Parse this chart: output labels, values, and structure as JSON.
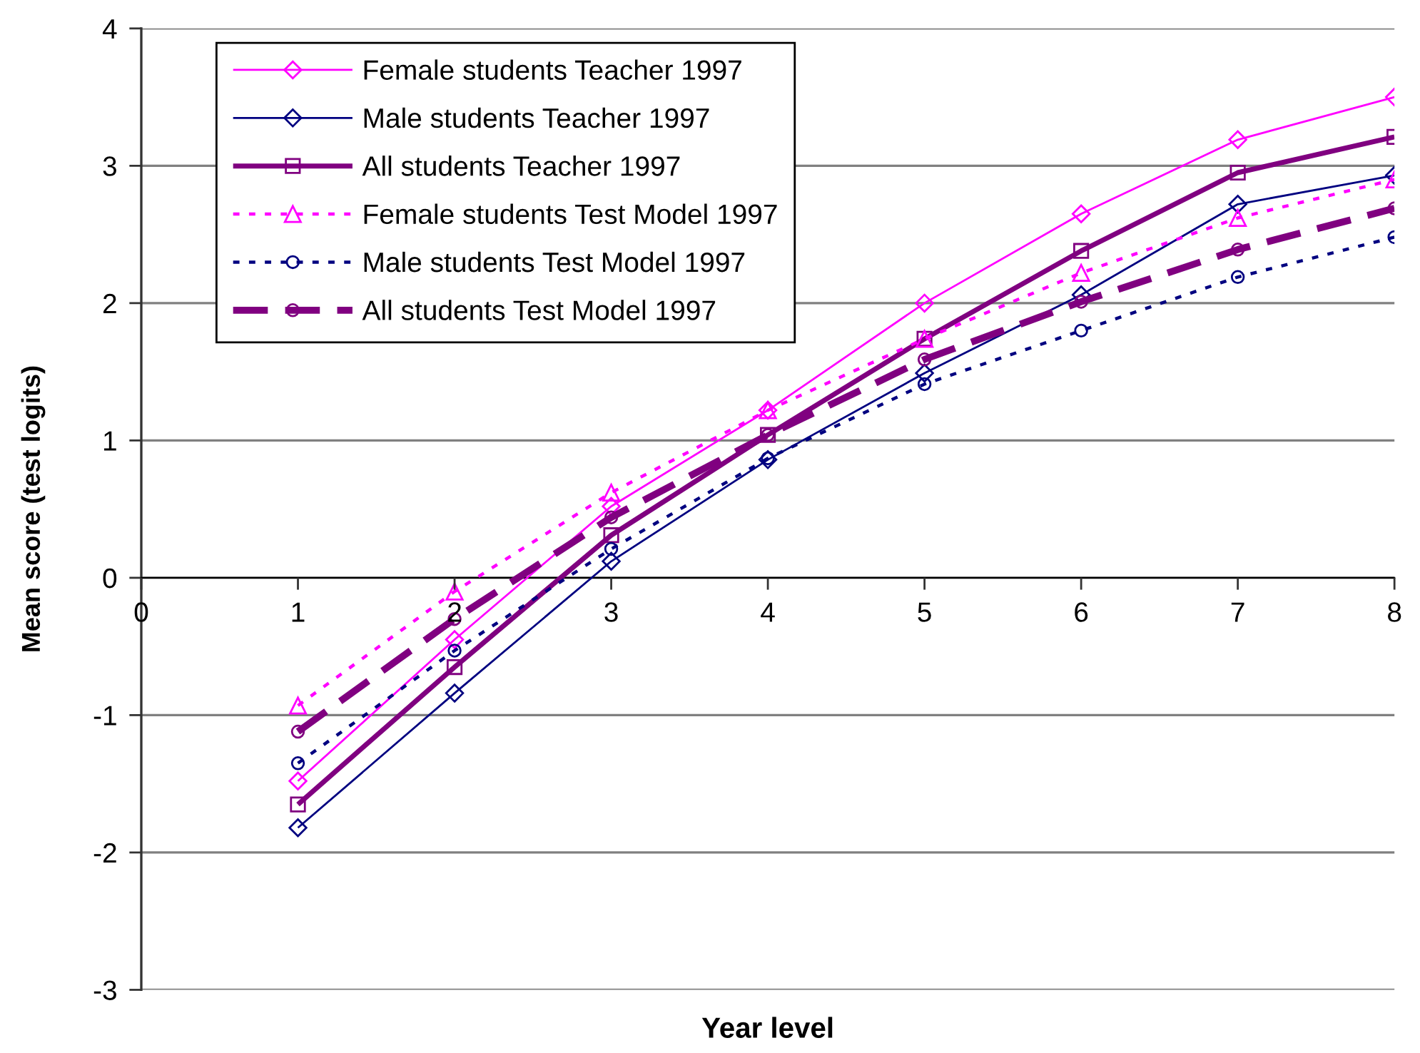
{
  "chart_data": {
    "type": "line",
    "xlabel": "Year level",
    "ylabel": "Mean score (test logits)",
    "x": [
      1,
      2,
      3,
      4,
      5,
      6,
      7,
      8
    ],
    "xlim": [
      0,
      8
    ],
    "xticks": [
      0,
      1,
      2,
      3,
      4,
      5,
      6,
      7,
      8
    ],
    "ylim": [
      -3,
      4
    ],
    "yticks": [
      -3,
      -2,
      -1,
      0,
      1,
      2,
      3,
      4
    ],
    "grid": "y",
    "legend": "top left",
    "series": [
      {
        "name": "Female students Teacher 1997",
        "color": "#ff00ff",
        "marker": "diamond",
        "line_style": "solid",
        "values": [
          -1.48,
          -0.45,
          0.52,
          1.22,
          2.0,
          2.65,
          3.19,
          3.5
        ]
      },
      {
        "name": "Male students Teacher 1997",
        "color": "#000080",
        "marker": "diamond",
        "line_style": "solid",
        "values": [
          -1.82,
          -0.84,
          0.12,
          0.86,
          1.49,
          2.06,
          2.72,
          2.93
        ]
      },
      {
        "name": "All students Teacher 1997",
        "color": "#800080",
        "marker": "square",
        "line_style": "solid",
        "values": [
          -1.65,
          -0.65,
          0.31,
          1.04,
          1.74,
          2.38,
          2.95,
          3.21
        ]
      },
      {
        "name": "Female students Test Model 1997",
        "color": "#ff00ff",
        "marker": "triangle",
        "line_style": "dotted",
        "values": [
          -0.93,
          -0.1,
          0.62,
          1.22,
          1.74,
          2.22,
          2.62,
          2.9
        ]
      },
      {
        "name": "Male students Test Model 1997",
        "color": "#000080",
        "marker": "circle",
        "line_style": "dotted",
        "values": [
          -1.35,
          -0.53,
          0.21,
          0.87,
          1.41,
          1.8,
          2.19,
          2.48
        ]
      },
      {
        "name": "All students Test Model 1997",
        "color": "#800080",
        "marker": "circle",
        "line_style": "dashed",
        "values": [
          -1.12,
          -0.3,
          0.44,
          1.04,
          1.59,
          2.01,
          2.39,
          2.69
        ]
      }
    ]
  }
}
